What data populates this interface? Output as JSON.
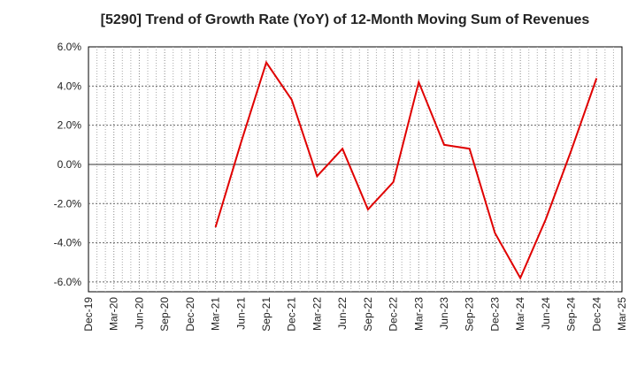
{
  "chart_data": {
    "type": "line",
    "title": "[5290]  Trend of Growth Rate (YoY) of 12-Month Moving Sum of Revenues",
    "xlabel": "",
    "ylabel": "",
    "x_ticks": [
      "Dec-19",
      "Mar-20",
      "Jun-20",
      "Sep-20",
      "Dec-20",
      "Mar-21",
      "Jun-21",
      "Sep-21",
      "Dec-21",
      "Mar-22",
      "Jun-22",
      "Sep-22",
      "Dec-22",
      "Mar-23",
      "Jun-23",
      "Sep-23",
      "Dec-23",
      "Mar-24",
      "Jun-24",
      "Sep-24",
      "Dec-24",
      "Mar-25"
    ],
    "y_ticks": [
      "6.0%",
      "4.0%",
      "2.0%",
      "0.0%",
      "-2.0%",
      "-4.0%",
      "-6.0%"
    ],
    "ylim": [
      -6.5,
      6.0
    ],
    "grid": true,
    "series": [
      {
        "color": "#e00000",
        "x": [
          "Mar-21",
          "Jun-21",
          "Sep-21",
          "Dec-21",
          "Mar-22",
          "Jun-22",
          "Sep-22",
          "Dec-22",
          "Mar-23",
          "Jun-23",
          "Sep-23",
          "Dec-23",
          "Mar-24",
          "Jun-24",
          "Sep-24",
          "Dec-24"
        ],
        "values": [
          -3.2,
          1.1,
          5.2,
          3.3,
          -0.6,
          0.8,
          -2.3,
          -0.9,
          4.2,
          1.0,
          0.8,
          -3.5,
          -5.8,
          -2.8,
          0.7,
          4.4
        ]
      }
    ]
  }
}
